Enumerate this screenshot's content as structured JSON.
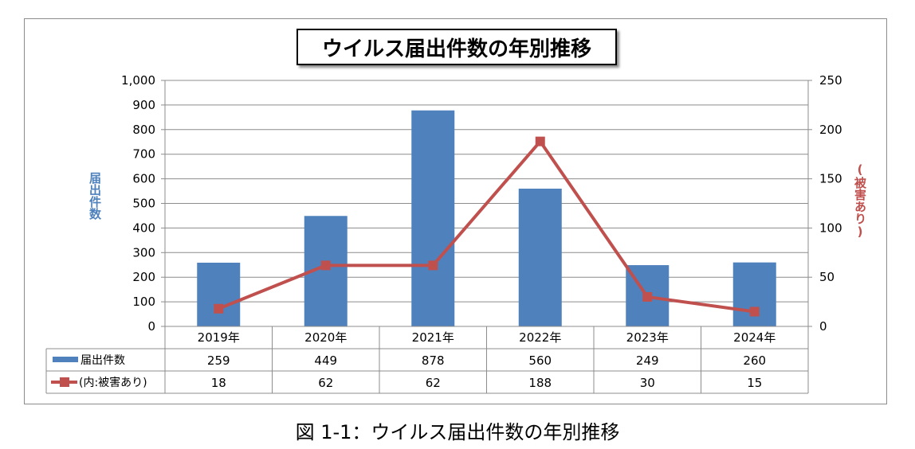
{
  "chart_data": {
    "type": "bar",
    "title": "ウイルス届出件数の年別推移",
    "categories": [
      "2019年",
      "2020年",
      "2021年",
      "2022年",
      "2023年",
      "2024年"
    ],
    "series": [
      {
        "name": "届出件数",
        "kind": "bar",
        "axis": "left",
        "color": "#4f81bd",
        "values": [
          259,
          449,
          878,
          560,
          249,
          260
        ]
      },
      {
        "name": "(内:被害あり)",
        "kind": "line",
        "axis": "right",
        "color": "#c0504d",
        "values": [
          18,
          62,
          62,
          188,
          30,
          15
        ]
      }
    ],
    "ylabel": "届出件数",
    "y2label": "(被害あり)",
    "ylim": [
      0,
      1000
    ],
    "y2lim": [
      0,
      250
    ],
    "yticks": [
      "0",
      "100",
      "200",
      "300",
      "400",
      "500",
      "600",
      "700",
      "800",
      "900",
      "1,000"
    ],
    "y2ticks": [
      "0",
      "50",
      "100",
      "150",
      "200",
      "250"
    ],
    "grid": true,
    "data_table": true
  },
  "caption": "図 1-1：ウイルス届出件数の年別推移"
}
